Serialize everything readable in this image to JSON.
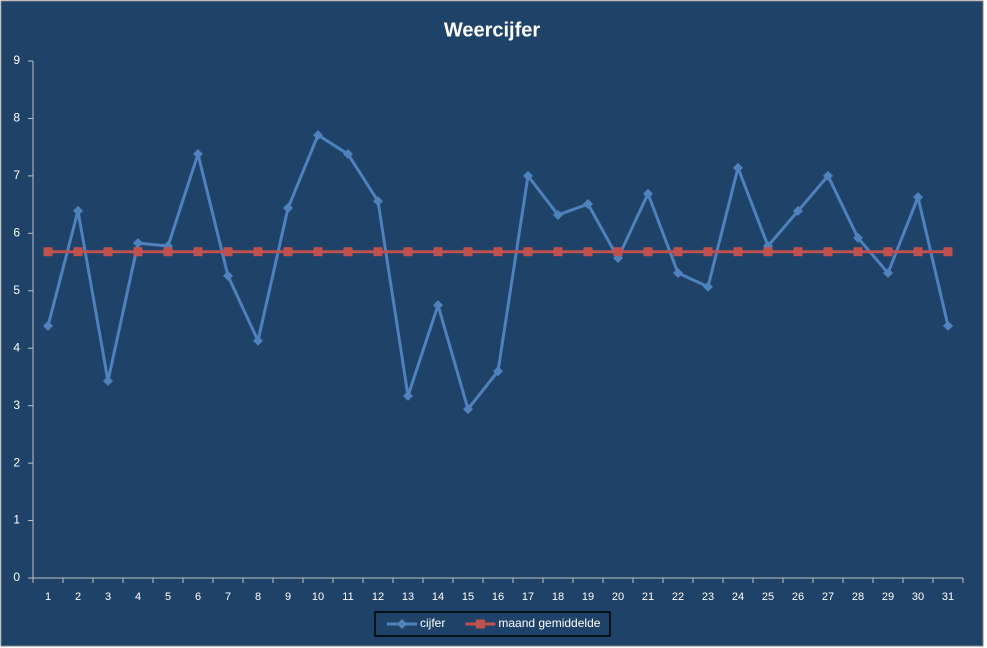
{
  "chart_data": {
    "type": "line",
    "title": "Weercijfer",
    "categories": [
      1,
      2,
      3,
      4,
      5,
      6,
      7,
      8,
      9,
      10,
      11,
      12,
      13,
      14,
      15,
      16,
      17,
      18,
      19,
      20,
      21,
      22,
      23,
      24,
      25,
      26,
      27,
      28,
      29,
      30,
      31
    ],
    "series": [
      {
        "name": "cijfer",
        "color": "#4f81bd",
        "marker": "diamond",
        "values": [
          4.39,
          6.39,
          3.43,
          5.83,
          5.78,
          7.38,
          5.26,
          4.13,
          6.44,
          7.71,
          7.38,
          6.56,
          3.17,
          4.75,
          2.94,
          3.6,
          7.0,
          6.32,
          6.51,
          5.57,
          6.69,
          5.31,
          5.07,
          7.14,
          5.78,
          6.39,
          7.0,
          5.92,
          5.31,
          6.63,
          4.39
        ]
      },
      {
        "name": "maand gemiddelde",
        "color": "#c0504d",
        "marker": "square",
        "values": [
          5.68,
          5.68,
          5.68,
          5.68,
          5.68,
          5.68,
          5.68,
          5.68,
          5.68,
          5.68,
          5.68,
          5.68,
          5.68,
          5.68,
          5.68,
          5.68,
          5.68,
          5.68,
          5.68,
          5.68,
          5.68,
          5.68,
          5.68,
          5.68,
          5.68,
          5.68,
          5.68,
          5.68,
          5.68,
          5.68,
          5.68
        ]
      }
    ],
    "ylim": [
      0,
      9
    ],
    "yticks": [
      0,
      1,
      2,
      3,
      4,
      5,
      6,
      7,
      8,
      9
    ],
    "grid": false,
    "legend": "bottom"
  }
}
